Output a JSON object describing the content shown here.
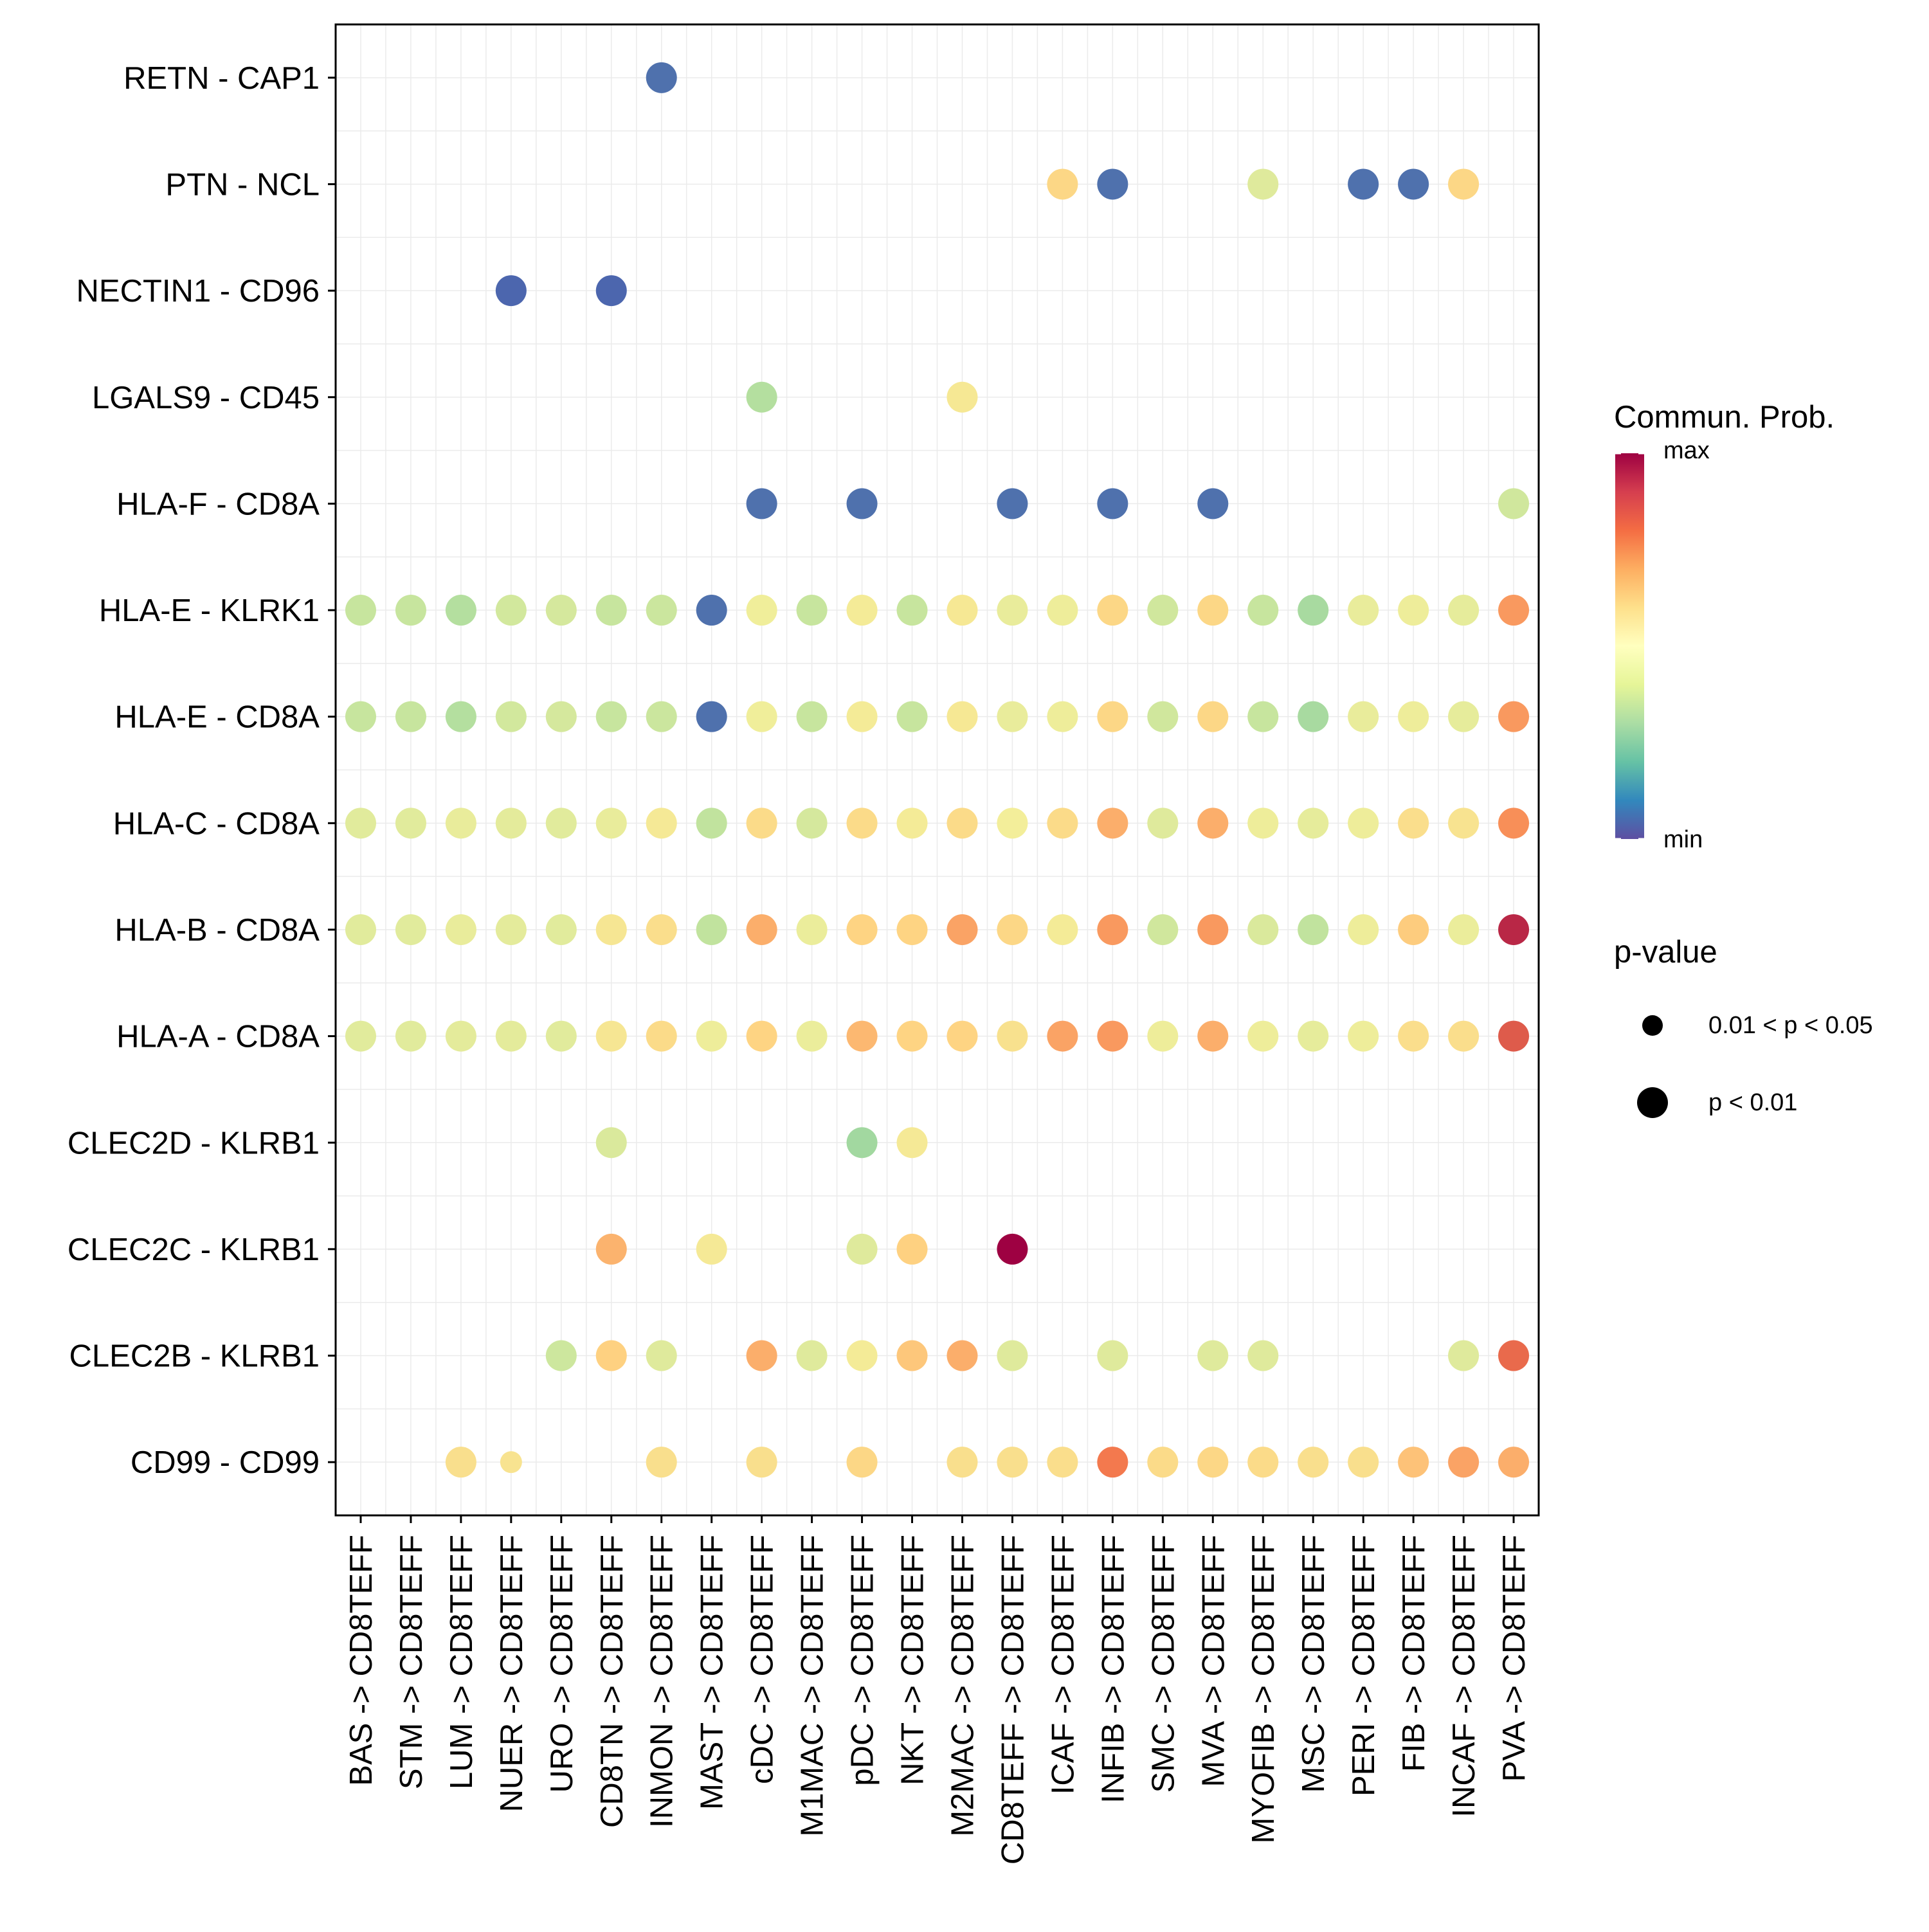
{
  "chart_data": {
    "type": "bubble",
    "title": "",
    "xlabel": "",
    "ylabel": "",
    "grid": true,
    "x_categories": [
      "BAS -> CD8TEFF",
      "STM -> CD8TEFF",
      "LUM -> CD8TEFF",
      "NUER -> CD8TEFF",
      "URO -> CD8TEFF",
      "CD8TN -> CD8TEFF",
      "INMON -> CD8TEFF",
      "MAST -> CD8TEFF",
      "cDC -> CD8TEFF",
      "M1MAC -> CD8TEFF",
      "pDC -> CD8TEFF",
      "NKT -> CD8TEFF",
      "M2MAC -> CD8TEFF",
      "CD8TEFF -> CD8TEFF",
      "ICAF -> CD8TEFF",
      "INFIB -> CD8TEFF",
      "SMC -> CD8TEFF",
      "MVA -> CD8TEFF",
      "MYOFIB -> CD8TEFF",
      "MSC -> CD8TEFF",
      "PERI -> CD8TEFF",
      "FIB -> CD8TEFF",
      "INCAF -> CD8TEFF",
      "PVA -> CD8TEFF"
    ],
    "y_categories": [
      "RETN - CAP1",
      "PTN - NCL",
      "NECTIN1 - CD96",
      "LGALS9 - CD45",
      "HLA-F - CD8A",
      "HLA-E - KLRK1",
      "HLA-E - CD8A",
      "HLA-C - CD8A",
      "HLA-B - CD8A",
      "HLA-A - CD8A",
      "CLEC2D - KLRB1",
      "CLEC2C - KLRB1",
      "CLEC2B - KLRB1",
      "CD99 - CD99"
    ],
    "prob_scale": {
      "min": 0,
      "max": 1
    },
    "rows": [
      {
        "pair": "RETN - CAP1",
        "prob": [
          null,
          null,
          null,
          null,
          null,
          null,
          0.02,
          null,
          null,
          null,
          null,
          null,
          null,
          null,
          null,
          null,
          null,
          null,
          null,
          null,
          null,
          null,
          null,
          null
        ],
        "p": [
          null,
          null,
          null,
          null,
          null,
          null,
          "p < 0.01",
          null,
          null,
          null,
          null,
          null,
          null,
          null,
          null,
          null,
          null,
          null,
          null,
          null,
          null,
          null,
          null,
          null
        ]
      },
      {
        "pair": "PTN - NCL",
        "prob": [
          null,
          null,
          null,
          null,
          null,
          null,
          null,
          null,
          null,
          null,
          null,
          null,
          null,
          null,
          0.64,
          0.02,
          null,
          null,
          0.42,
          null,
          0.02,
          0.02,
          0.64,
          null
        ],
        "p": [
          null,
          null,
          null,
          null,
          null,
          null,
          null,
          null,
          null,
          null,
          null,
          null,
          null,
          null,
          "p < 0.01",
          "p < 0.01",
          null,
          null,
          "p < 0.01",
          null,
          "p < 0.01",
          "p < 0.01",
          "p < 0.01",
          null
        ]
      },
      {
        "pair": "NECTIN1 - CD96",
        "prob": [
          null,
          null,
          null,
          0.0,
          null,
          0.0,
          null,
          null,
          null,
          null,
          null,
          null,
          null,
          null,
          null,
          null,
          null,
          null,
          null,
          null,
          null,
          null,
          null,
          null
        ],
        "p": [
          null,
          null,
          null,
          "p < 0.01",
          null,
          "p < 0.01",
          null,
          null,
          null,
          null,
          null,
          null,
          null,
          null,
          null,
          null,
          null,
          null,
          null,
          null,
          null,
          null,
          null,
          null
        ]
      },
      {
        "pair": "LGALS9 - CD45",
        "prob": [
          null,
          null,
          null,
          null,
          null,
          null,
          null,
          null,
          0.3,
          null,
          null,
          null,
          0.54,
          null,
          null,
          null,
          null,
          null,
          null,
          null,
          null,
          null,
          null,
          null
        ],
        "p": [
          null,
          null,
          null,
          null,
          null,
          null,
          null,
          null,
          "p < 0.01",
          null,
          null,
          null,
          "p < 0.01",
          null,
          null,
          null,
          null,
          null,
          null,
          null,
          null,
          null,
          null,
          null
        ]
      },
      {
        "pair": "HLA-F - CD8A",
        "prob": [
          null,
          null,
          null,
          null,
          null,
          null,
          null,
          null,
          0.02,
          null,
          0.02,
          null,
          null,
          0.02,
          null,
          0.02,
          null,
          0.02,
          null,
          null,
          null,
          null,
          null,
          0.36
        ],
        "p": [
          null,
          null,
          null,
          null,
          null,
          null,
          null,
          null,
          "p < 0.01",
          null,
          "p < 0.01",
          null,
          null,
          "p < 0.01",
          null,
          "p < 0.01",
          null,
          "p < 0.01",
          null,
          null,
          null,
          null,
          null,
          "p < 0.01"
        ]
      },
      {
        "pair": "HLA-E - KLRK1",
        "prob": [
          0.33,
          0.33,
          0.3,
          0.37,
          0.38,
          0.33,
          0.34,
          0.02,
          0.49,
          0.33,
          0.52,
          0.33,
          0.54,
          0.46,
          0.48,
          0.64,
          0.36,
          0.64,
          0.33,
          0.28,
          0.46,
          0.48,
          0.45,
          0.78
        ],
        "p": [
          "p < 0.01",
          "p < 0.01",
          "p < 0.01",
          "p < 0.01",
          "p < 0.01",
          "p < 0.01",
          "p < 0.01",
          "p < 0.01",
          "p < 0.01",
          "p < 0.01",
          "p < 0.01",
          "p < 0.01",
          "p < 0.01",
          "p < 0.01",
          "p < 0.01",
          "p < 0.01",
          "p < 0.01",
          "p < 0.01",
          "p < 0.01",
          "p < 0.01",
          "p < 0.01",
          "p < 0.01",
          "p < 0.01",
          "p < 0.01"
        ]
      },
      {
        "pair": "HLA-E - CD8A",
        "prob": [
          0.33,
          0.33,
          0.3,
          0.37,
          0.38,
          0.33,
          0.34,
          0.02,
          0.49,
          0.33,
          0.52,
          0.33,
          0.54,
          0.46,
          0.48,
          0.64,
          0.36,
          0.64,
          0.33,
          0.28,
          0.46,
          0.48,
          0.45,
          0.78
        ],
        "p": [
          "p < 0.01",
          "p < 0.01",
          "p < 0.01",
          "p < 0.01",
          "p < 0.01",
          "p < 0.01",
          "p < 0.01",
          "p < 0.01",
          "p < 0.01",
          "p < 0.01",
          "p < 0.01",
          "p < 0.01",
          "p < 0.01",
          "p < 0.01",
          "p < 0.01",
          "p < 0.01",
          "p < 0.01",
          "p < 0.01",
          "p < 0.01",
          "p < 0.01",
          "p < 0.01",
          "p < 0.01",
          "p < 0.01",
          "p < 0.01"
        ]
      },
      {
        "pair": "HLA-C - CD8A",
        "prob": [
          0.43,
          0.43,
          0.46,
          0.44,
          0.43,
          0.46,
          0.53,
          0.32,
          0.62,
          0.38,
          0.62,
          0.52,
          0.62,
          0.5,
          0.62,
          0.74,
          0.42,
          0.74,
          0.48,
          0.45,
          0.48,
          0.6,
          0.57,
          0.8
        ],
        "p": [
          "p < 0.01",
          "p < 0.01",
          "p < 0.01",
          "p < 0.01",
          "p < 0.01",
          "p < 0.01",
          "p < 0.01",
          "p < 0.01",
          "p < 0.01",
          "p < 0.01",
          "p < 0.01",
          "p < 0.01",
          "p < 0.01",
          "p < 0.01",
          "p < 0.01",
          "p < 0.01",
          "p < 0.01",
          "p < 0.01",
          "p < 0.01",
          "p < 0.01",
          "p < 0.01",
          "p < 0.01",
          "p < 0.01",
          "p < 0.01"
        ]
      },
      {
        "pair": "HLA-B - CD8A",
        "prob": [
          0.43,
          0.43,
          0.46,
          0.44,
          0.43,
          0.55,
          0.6,
          0.32,
          0.74,
          0.47,
          0.66,
          0.66,
          0.76,
          0.64,
          0.52,
          0.78,
          0.36,
          0.78,
          0.4,
          0.32,
          0.48,
          0.68,
          0.47,
          0.95
        ],
        "p": [
          "p < 0.01",
          "p < 0.01",
          "p < 0.01",
          "p < 0.01",
          "p < 0.01",
          "p < 0.01",
          "p < 0.01",
          "p < 0.01",
          "p < 0.01",
          "p < 0.01",
          "p < 0.01",
          "p < 0.01",
          "p < 0.01",
          "p < 0.01",
          "p < 0.01",
          "p < 0.01",
          "p < 0.01",
          "p < 0.01",
          "p < 0.01",
          "p < 0.01",
          "p < 0.01",
          "p < 0.01",
          "p < 0.01",
          "p < 0.01"
        ]
      },
      {
        "pair": "HLA-A - CD8A",
        "prob": [
          0.43,
          0.43,
          0.44,
          0.44,
          0.43,
          0.55,
          0.62,
          0.48,
          0.66,
          0.47,
          0.72,
          0.66,
          0.66,
          0.58,
          0.76,
          0.78,
          0.48,
          0.74,
          0.48,
          0.45,
          0.48,
          0.6,
          0.6,
          0.88
        ],
        "p": [
          "p < 0.01",
          "p < 0.01",
          "p < 0.01",
          "p < 0.01",
          "p < 0.01",
          "p < 0.01",
          "p < 0.01",
          "p < 0.01",
          "p < 0.01",
          "p < 0.01",
          "p < 0.01",
          "p < 0.01",
          "p < 0.01",
          "p < 0.01",
          "p < 0.01",
          "p < 0.01",
          "p < 0.01",
          "p < 0.01",
          "p < 0.01",
          "p < 0.01",
          "p < 0.01",
          "p < 0.01",
          "p < 0.01",
          "p < 0.01"
        ]
      },
      {
        "pair": "CLEC2D - KLRB1",
        "prob": [
          null,
          null,
          null,
          null,
          null,
          0.4,
          null,
          null,
          null,
          null,
          0.27,
          0.53,
          null,
          null,
          null,
          null,
          null,
          null,
          null,
          null,
          null,
          null,
          null,
          null
        ],
        "p": [
          null,
          null,
          null,
          null,
          null,
          "p < 0.01",
          null,
          null,
          null,
          null,
          "p < 0.01",
          "p < 0.01",
          null,
          null,
          null,
          null,
          null,
          null,
          null,
          null,
          null,
          null,
          null,
          null
        ]
      },
      {
        "pair": "CLEC2C - KLRB1",
        "prob": [
          null,
          null,
          null,
          null,
          null,
          0.73,
          null,
          0.53,
          null,
          null,
          0.42,
          0.67,
          null,
          1.0,
          null,
          null,
          null,
          null,
          null,
          null,
          null,
          null,
          null,
          null
        ],
        "p": [
          null,
          null,
          null,
          null,
          null,
          "p < 0.01",
          null,
          "p < 0.01",
          null,
          null,
          "p < 0.01",
          "p < 0.01",
          null,
          "p < 0.01",
          null,
          null,
          null,
          null,
          null,
          null,
          null,
          null,
          null,
          null
        ]
      },
      {
        "pair": "CLEC2B - KLRB1",
        "prob": [
          null,
          null,
          null,
          null,
          0.35,
          0.67,
          0.42,
          null,
          0.74,
          0.42,
          0.52,
          0.69,
          0.74,
          0.42,
          null,
          0.42,
          null,
          0.42,
          0.42,
          null,
          null,
          null,
          0.42,
          0.86
        ],
        "p": [
          null,
          null,
          null,
          null,
          "p < 0.01",
          "p < 0.01",
          "p < 0.01",
          null,
          "p < 0.01",
          "p < 0.01",
          "p < 0.01",
          "p < 0.01",
          "p < 0.01",
          "p < 0.01",
          null,
          "p < 0.01",
          null,
          "p < 0.01",
          "p < 0.01",
          null,
          null,
          null,
          "p < 0.01",
          "p < 0.01"
        ]
      },
      {
        "pair": "CD99 - CD99",
        "prob": [
          null,
          null,
          0.59,
          0.57,
          null,
          null,
          0.59,
          null,
          0.59,
          null,
          0.64,
          null,
          0.59,
          0.59,
          0.6,
          0.84,
          0.62,
          0.64,
          0.62,
          0.59,
          0.59,
          0.7,
          0.76,
          0.74
        ],
        "p": [
          null,
          null,
          "p < 0.01",
          "0.01 < p < 0.05",
          null,
          null,
          "p < 0.01",
          null,
          "p < 0.01",
          null,
          "p < 0.01",
          null,
          "p < 0.01",
          "p < 0.01",
          "p < 0.01",
          "p < 0.01",
          "p < 0.01",
          "p < 0.01",
          "p < 0.01",
          "p < 0.01",
          "p < 0.01",
          "p < 0.01",
          "p < 0.01",
          "p < 0.01"
        ]
      }
    ],
    "legend": {
      "color_title": "Commun. Prob.",
      "color_max_label": "max",
      "color_min_label": "min",
      "size_title": "p-value",
      "size_items": [
        "0.01 < p < 0.05",
        "p < 0.01"
      ],
      "placement": "right"
    },
    "colors": {
      "palette": [
        "#5E4FA2",
        "#3288BD",
        "#66C2A5",
        "#ABDDA4",
        "#E6F598",
        "#FFFFBF",
        "#FEE08B",
        "#FDAE61",
        "#F46D43",
        "#D53E4F",
        "#9E0142"
      ],
      "point_palette": [
        "#4C66AE",
        "#62C2A3",
        "#C9E69E",
        "#F3EE9A",
        "#FED382",
        "#F77E4E",
        "#9E0142"
      ],
      "grid": "#EBEBEB",
      "border": "#000000"
    }
  }
}
